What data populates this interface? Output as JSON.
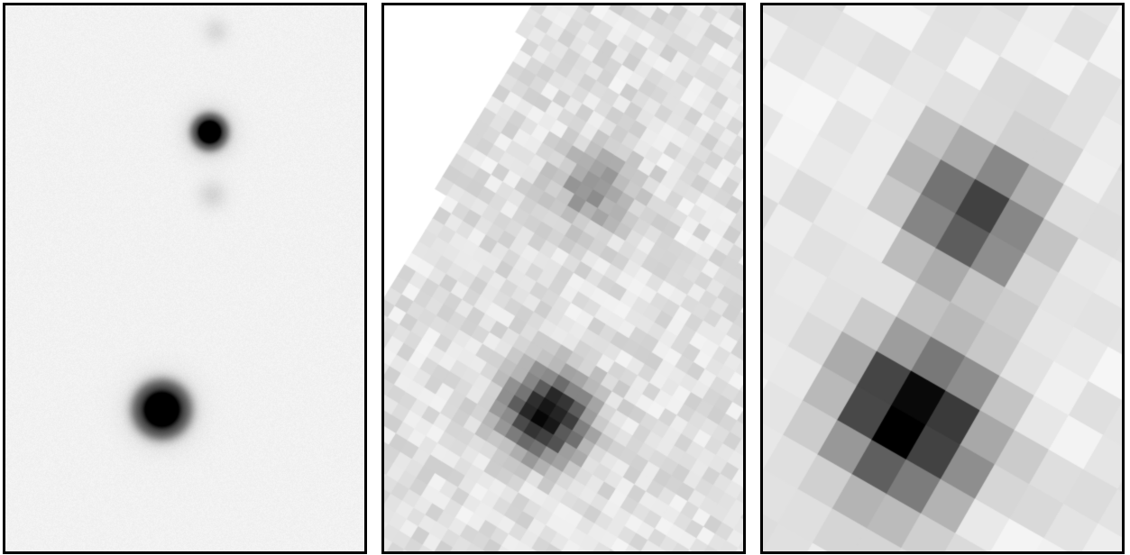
{
  "panels": [
    {
      "id": "panel-1",
      "description_name": "high-resolution-image",
      "background": "#f2f2f2",
      "sources": [
        {
          "name": "upper-source",
          "intensity": 1.0
        },
        {
          "name": "lower-source",
          "intensity": 1.0
        }
      ]
    },
    {
      "id": "panel-2",
      "description_name": "medium-resolution-image",
      "background": "#e4e4e4",
      "sources": [
        {
          "name": "upper-source",
          "intensity": 0.35
        },
        {
          "name": "lower-source",
          "intensity": 1.0
        }
      ]
    },
    {
      "id": "panel-3",
      "description_name": "low-resolution-image",
      "background": "#e6e6e6",
      "sources": [
        {
          "name": "upper-source",
          "intensity": 0.8
        },
        {
          "name": "lower-source",
          "intensity": 1.0
        }
      ]
    }
  ],
  "colors": {
    "frame": "#000000",
    "page": "#ffffff"
  }
}
